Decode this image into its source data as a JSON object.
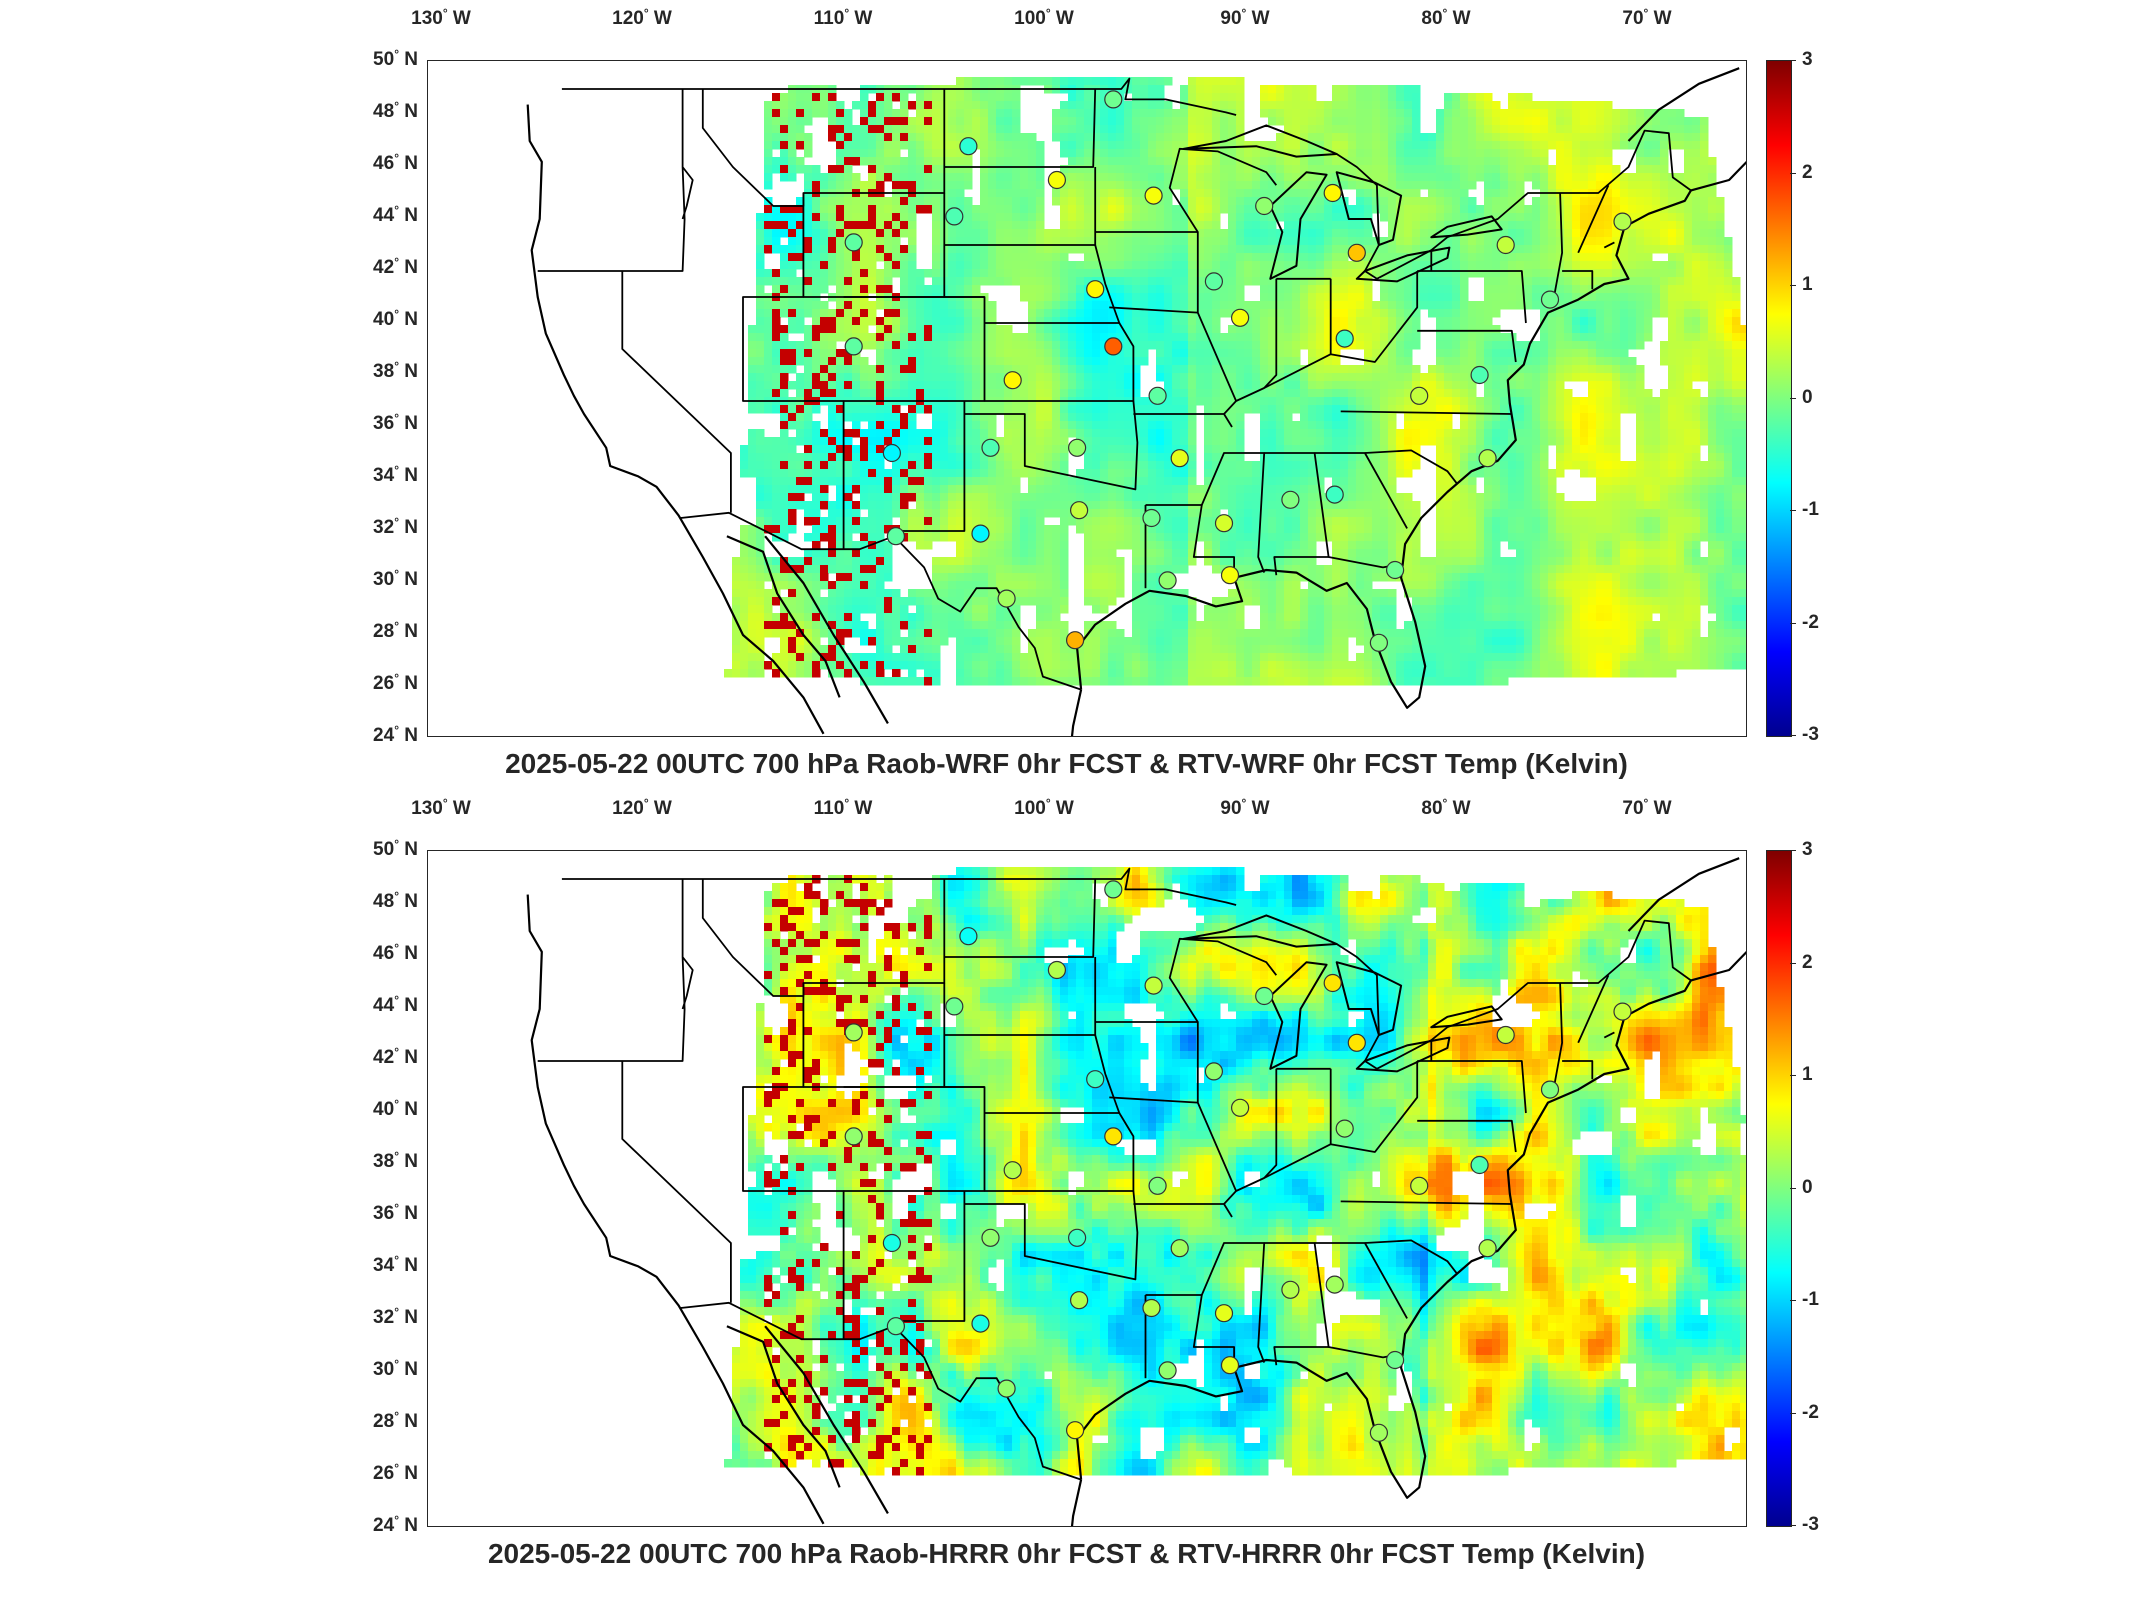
{
  "longitude_labels": [
    "130",
    "120",
    "110",
    "100",
    "90",
    "80",
    "70"
  ],
  "longitude_hemisphere": "W",
  "latitude_labels": [
    "50",
    "48",
    "46",
    "44",
    "42",
    "40",
    "38",
    "36",
    "34",
    "32",
    "30",
    "28",
    "26",
    "24"
  ],
  "latitude_hemisphere": "N",
  "degree_symbol": "°",
  "colorbar": {
    "ticks": [
      "3",
      "2",
      "1",
      "0",
      "-1",
      "-2",
      "-3"
    ],
    "range": [
      -3,
      3
    ],
    "colormap": "jet"
  },
  "panels": [
    {
      "title": "2025-05-22 00UTC 700 hPa Raob-WRF 0hr FCST & RTV-WRF 0hr FCST Temp (Kelvin)",
      "field_style": "smooth",
      "stations": [
        {
          "lon": -95.6,
          "lat": 48.6,
          "value": -0.1
        },
        {
          "lon": -102.8,
          "lat": 46.8,
          "value": -0.5
        },
        {
          "lon": -98.4,
          "lat": 45.5,
          "value": 0.7
        },
        {
          "lon": -93.6,
          "lat": 44.9,
          "value": 0.7
        },
        {
          "lon": -88.1,
          "lat": 44.5,
          "value": 0.1
        },
        {
          "lon": -84.7,
          "lat": 45.0,
          "value": 0.8
        },
        {
          "lon": -83.5,
          "lat": 42.7,
          "value": 1.1
        },
        {
          "lon": -76.1,
          "lat": 43.0,
          "value": 0.4
        },
        {
          "lon": -70.3,
          "lat": 43.9,
          "value": 0.3
        },
        {
          "lon": -108.5,
          "lat": 43.1,
          "value": -0.2
        },
        {
          "lon": -103.5,
          "lat": 44.1,
          "value": -0.3
        },
        {
          "lon": -96.5,
          "lat": 41.3,
          "value": 0.8
        },
        {
          "lon": -90.6,
          "lat": 41.6,
          "value": -0.2
        },
        {
          "lon": -89.3,
          "lat": 40.2,
          "value": 0.7
        },
        {
          "lon": -84.1,
          "lat": 39.4,
          "value": -0.4
        },
        {
          "lon": -77.4,
          "lat": 38.0,
          "value": -0.3
        },
        {
          "lon": -73.9,
          "lat": 40.9,
          "value": -0.1
        },
        {
          "lon": -108.5,
          "lat": 39.1,
          "value": -0.2
        },
        {
          "lon": -95.6,
          "lat": 39.1,
          "value": 1.7
        },
        {
          "lon": -100.6,
          "lat": 37.8,
          "value": 0.8
        },
        {
          "lon": -93.4,
          "lat": 37.2,
          "value": -0.2
        },
        {
          "lon": -80.4,
          "lat": 37.2,
          "value": 0.4
        },
        {
          "lon": -106.6,
          "lat": 35.0,
          "value": -0.8
        },
        {
          "lon": -101.7,
          "lat": 35.2,
          "value": -0.3
        },
        {
          "lon": -97.4,
          "lat": 35.2,
          "value": 0.1
        },
        {
          "lon": -92.3,
          "lat": 34.8,
          "value": 0.6
        },
        {
          "lon": -77.0,
          "lat": 34.8,
          "value": 0.3
        },
        {
          "lon": -86.8,
          "lat": 33.2,
          "value": 0.0
        },
        {
          "lon": -84.6,
          "lat": 33.4,
          "value": -0.4
        },
        {
          "lon": -90.1,
          "lat": 32.3,
          "value": 0.5
        },
        {
          "lon": -97.3,
          "lat": 32.8,
          "value": 0.4
        },
        {
          "lon": -93.7,
          "lat": 32.5,
          "value": -0.1
        },
        {
          "lon": -106.4,
          "lat": 31.8,
          "value": -0.2
        },
        {
          "lon": -102.2,
          "lat": 31.9,
          "value": -0.8
        },
        {
          "lon": -92.9,
          "lat": 30.1,
          "value": 0.1
        },
        {
          "lon": -89.8,
          "lat": 30.3,
          "value": 0.7
        },
        {
          "lon": -81.6,
          "lat": 30.5,
          "value": -0.1
        },
        {
          "lon": -100.9,
          "lat": 29.4,
          "value": 0.2
        },
        {
          "lon": -97.5,
          "lat": 27.8,
          "value": 1.2
        },
        {
          "lon": -82.4,
          "lat": 27.7,
          "value": 0.0
        }
      ]
    },
    {
      "title": "2025-05-22 00UTC 700 hPa Raob-HRRR 0hr FCST & RTV-HRRR 0hr FCST Temp (Kelvin)",
      "field_style": "structured",
      "stations": [
        {
          "lon": -95.6,
          "lat": 48.6,
          "value": -0.1
        },
        {
          "lon": -102.8,
          "lat": 46.8,
          "value": -0.7
        },
        {
          "lon": -98.4,
          "lat": 45.5,
          "value": 0.3
        },
        {
          "lon": -93.6,
          "lat": 44.9,
          "value": 0.4
        },
        {
          "lon": -88.1,
          "lat": 44.5,
          "value": -0.1
        },
        {
          "lon": -84.7,
          "lat": 45.0,
          "value": 0.9
        },
        {
          "lon": -83.5,
          "lat": 42.7,
          "value": 0.9
        },
        {
          "lon": -76.1,
          "lat": 43.0,
          "value": 0.4
        },
        {
          "lon": -70.3,
          "lat": 43.9,
          "value": 0.4
        },
        {
          "lon": -108.5,
          "lat": 43.1,
          "value": 0.2
        },
        {
          "lon": -103.5,
          "lat": 44.1,
          "value": -0.1
        },
        {
          "lon": -96.5,
          "lat": 41.3,
          "value": -0.4
        },
        {
          "lon": -90.6,
          "lat": 41.6,
          "value": 0.1
        },
        {
          "lon": -89.3,
          "lat": 40.2,
          "value": 0.4
        },
        {
          "lon": -84.1,
          "lat": 39.4,
          "value": 0.1
        },
        {
          "lon": -77.4,
          "lat": 38.0,
          "value": -0.3
        },
        {
          "lon": -73.9,
          "lat": 40.9,
          "value": 0.0
        },
        {
          "lon": -108.5,
          "lat": 39.1,
          "value": 0.1
        },
        {
          "lon": -95.6,
          "lat": 39.1,
          "value": 0.9
        },
        {
          "lon": -100.6,
          "lat": 37.8,
          "value": 0.3
        },
        {
          "lon": -93.4,
          "lat": 37.2,
          "value": 0.0
        },
        {
          "lon": -80.4,
          "lat": 37.2,
          "value": 0.4
        },
        {
          "lon": -106.6,
          "lat": 35.0,
          "value": -0.6
        },
        {
          "lon": -101.7,
          "lat": 35.2,
          "value": 0.1
        },
        {
          "lon": -97.4,
          "lat": 35.2,
          "value": -0.4
        },
        {
          "lon": -92.3,
          "lat": 34.8,
          "value": 0.2
        },
        {
          "lon": -77.0,
          "lat": 34.8,
          "value": 0.3
        },
        {
          "lon": -86.8,
          "lat": 33.2,
          "value": 0.3
        },
        {
          "lon": -84.6,
          "lat": 33.4,
          "value": 0.2
        },
        {
          "lon": -90.1,
          "lat": 32.3,
          "value": 0.6
        },
        {
          "lon": -97.3,
          "lat": 32.8,
          "value": 0.3
        },
        {
          "lon": -93.7,
          "lat": 32.5,
          "value": 0.3
        },
        {
          "lon": -106.4,
          "lat": 31.8,
          "value": -0.2
        },
        {
          "lon": -102.2,
          "lat": 31.9,
          "value": -0.6
        },
        {
          "lon": -92.9,
          "lat": 30.1,
          "value": 0.1
        },
        {
          "lon": -89.8,
          "lat": 30.3,
          "value": 0.6
        },
        {
          "lon": -81.6,
          "lat": 30.5,
          "value": -0.1
        },
        {
          "lon": -100.9,
          "lat": 29.4,
          "value": 0.1
        },
        {
          "lon": -97.5,
          "lat": 27.8,
          "value": 0.8
        },
        {
          "lon": -82.4,
          "lat": 27.7,
          "value": 0.2
        }
      ]
    }
  ]
}
